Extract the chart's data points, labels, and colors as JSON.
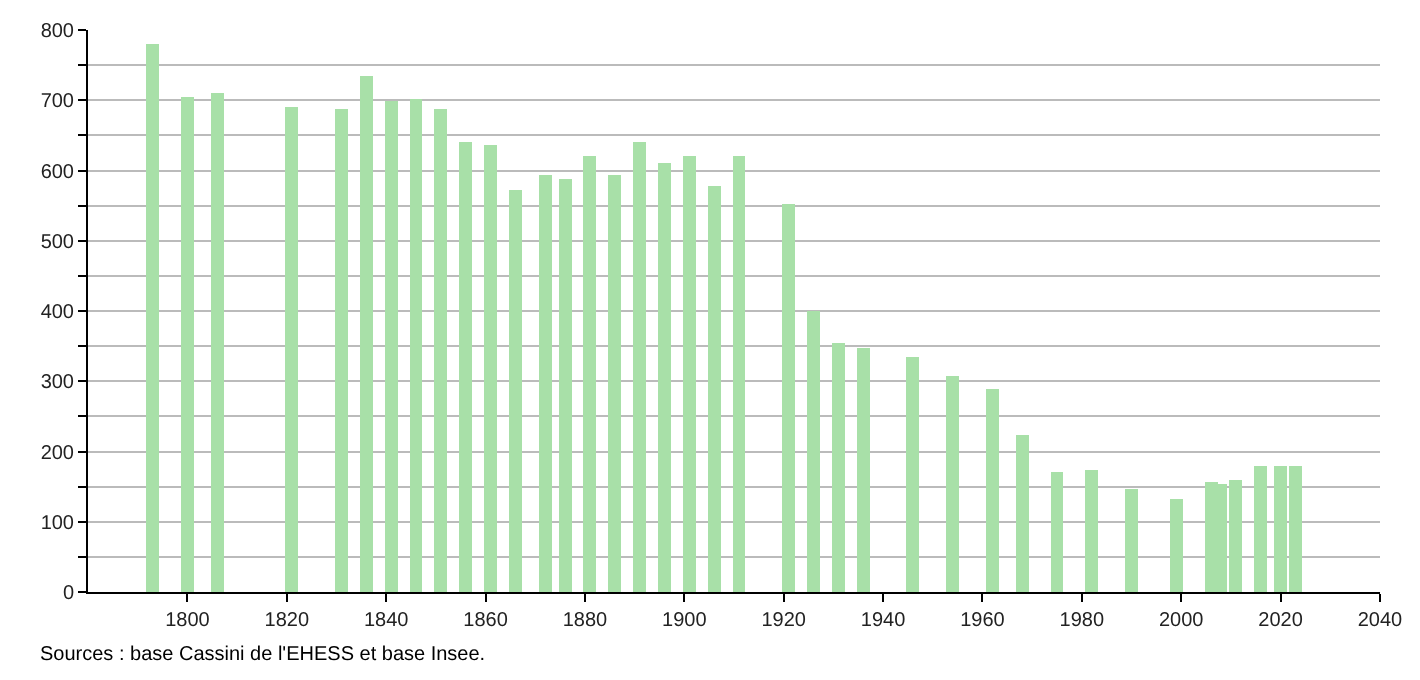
{
  "chart_data": {
    "type": "bar",
    "x": [
      1793,
      1800,
      1806,
      1821,
      1831,
      1836,
      1841,
      1846,
      1851,
      1856,
      1861,
      1866,
      1872,
      1876,
      1881,
      1886,
      1891,
      1896,
      1901,
      1906,
      1911,
      1921,
      1926,
      1931,
      1936,
      1946,
      1954,
      1962,
      1968,
      1975,
      1982,
      1990,
      1999,
      2006,
      2008,
      2011,
      2016,
      2020,
      2023
    ],
    "values": [
      780,
      705,
      710,
      691,
      688,
      734,
      699,
      702,
      687,
      641,
      636,
      572,
      594,
      588,
      620,
      594,
      641,
      610,
      621,
      578,
      621,
      553,
      400,
      354,
      348,
      334,
      307,
      289,
      223,
      171,
      174,
      147,
      132,
      157,
      154,
      160,
      179,
      179,
      179
    ],
    "color": "#a8e0a8",
    "xlim": [
      1780,
      2040
    ],
    "xticks": [
      1800,
      1820,
      1840,
      1860,
      1880,
      1900,
      1920,
      1940,
      1960,
      1980,
      2000,
      2020,
      2040
    ],
    "ylim": [
      0,
      800
    ],
    "yticks": [
      0,
      {
        "value": 50,
        "label": null
      },
      100,
      {
        "value": 150,
        "label": null
      },
      200,
      {
        "value": 250,
        "label": null
      },
      300,
      {
        "value": 350,
        "label": null
      },
      400,
      {
        "value": 450,
        "label": null
      },
      500,
      {
        "value": 550,
        "label": null
      },
      600,
      {
        "value": 650,
        "label": null
      },
      700,
      {
        "value": 750,
        "label": null
      },
      800
    ],
    "grid": "y",
    "annotations": [
      "Sources : base Cassini de l'EHESS et base Insee."
    ]
  }
}
